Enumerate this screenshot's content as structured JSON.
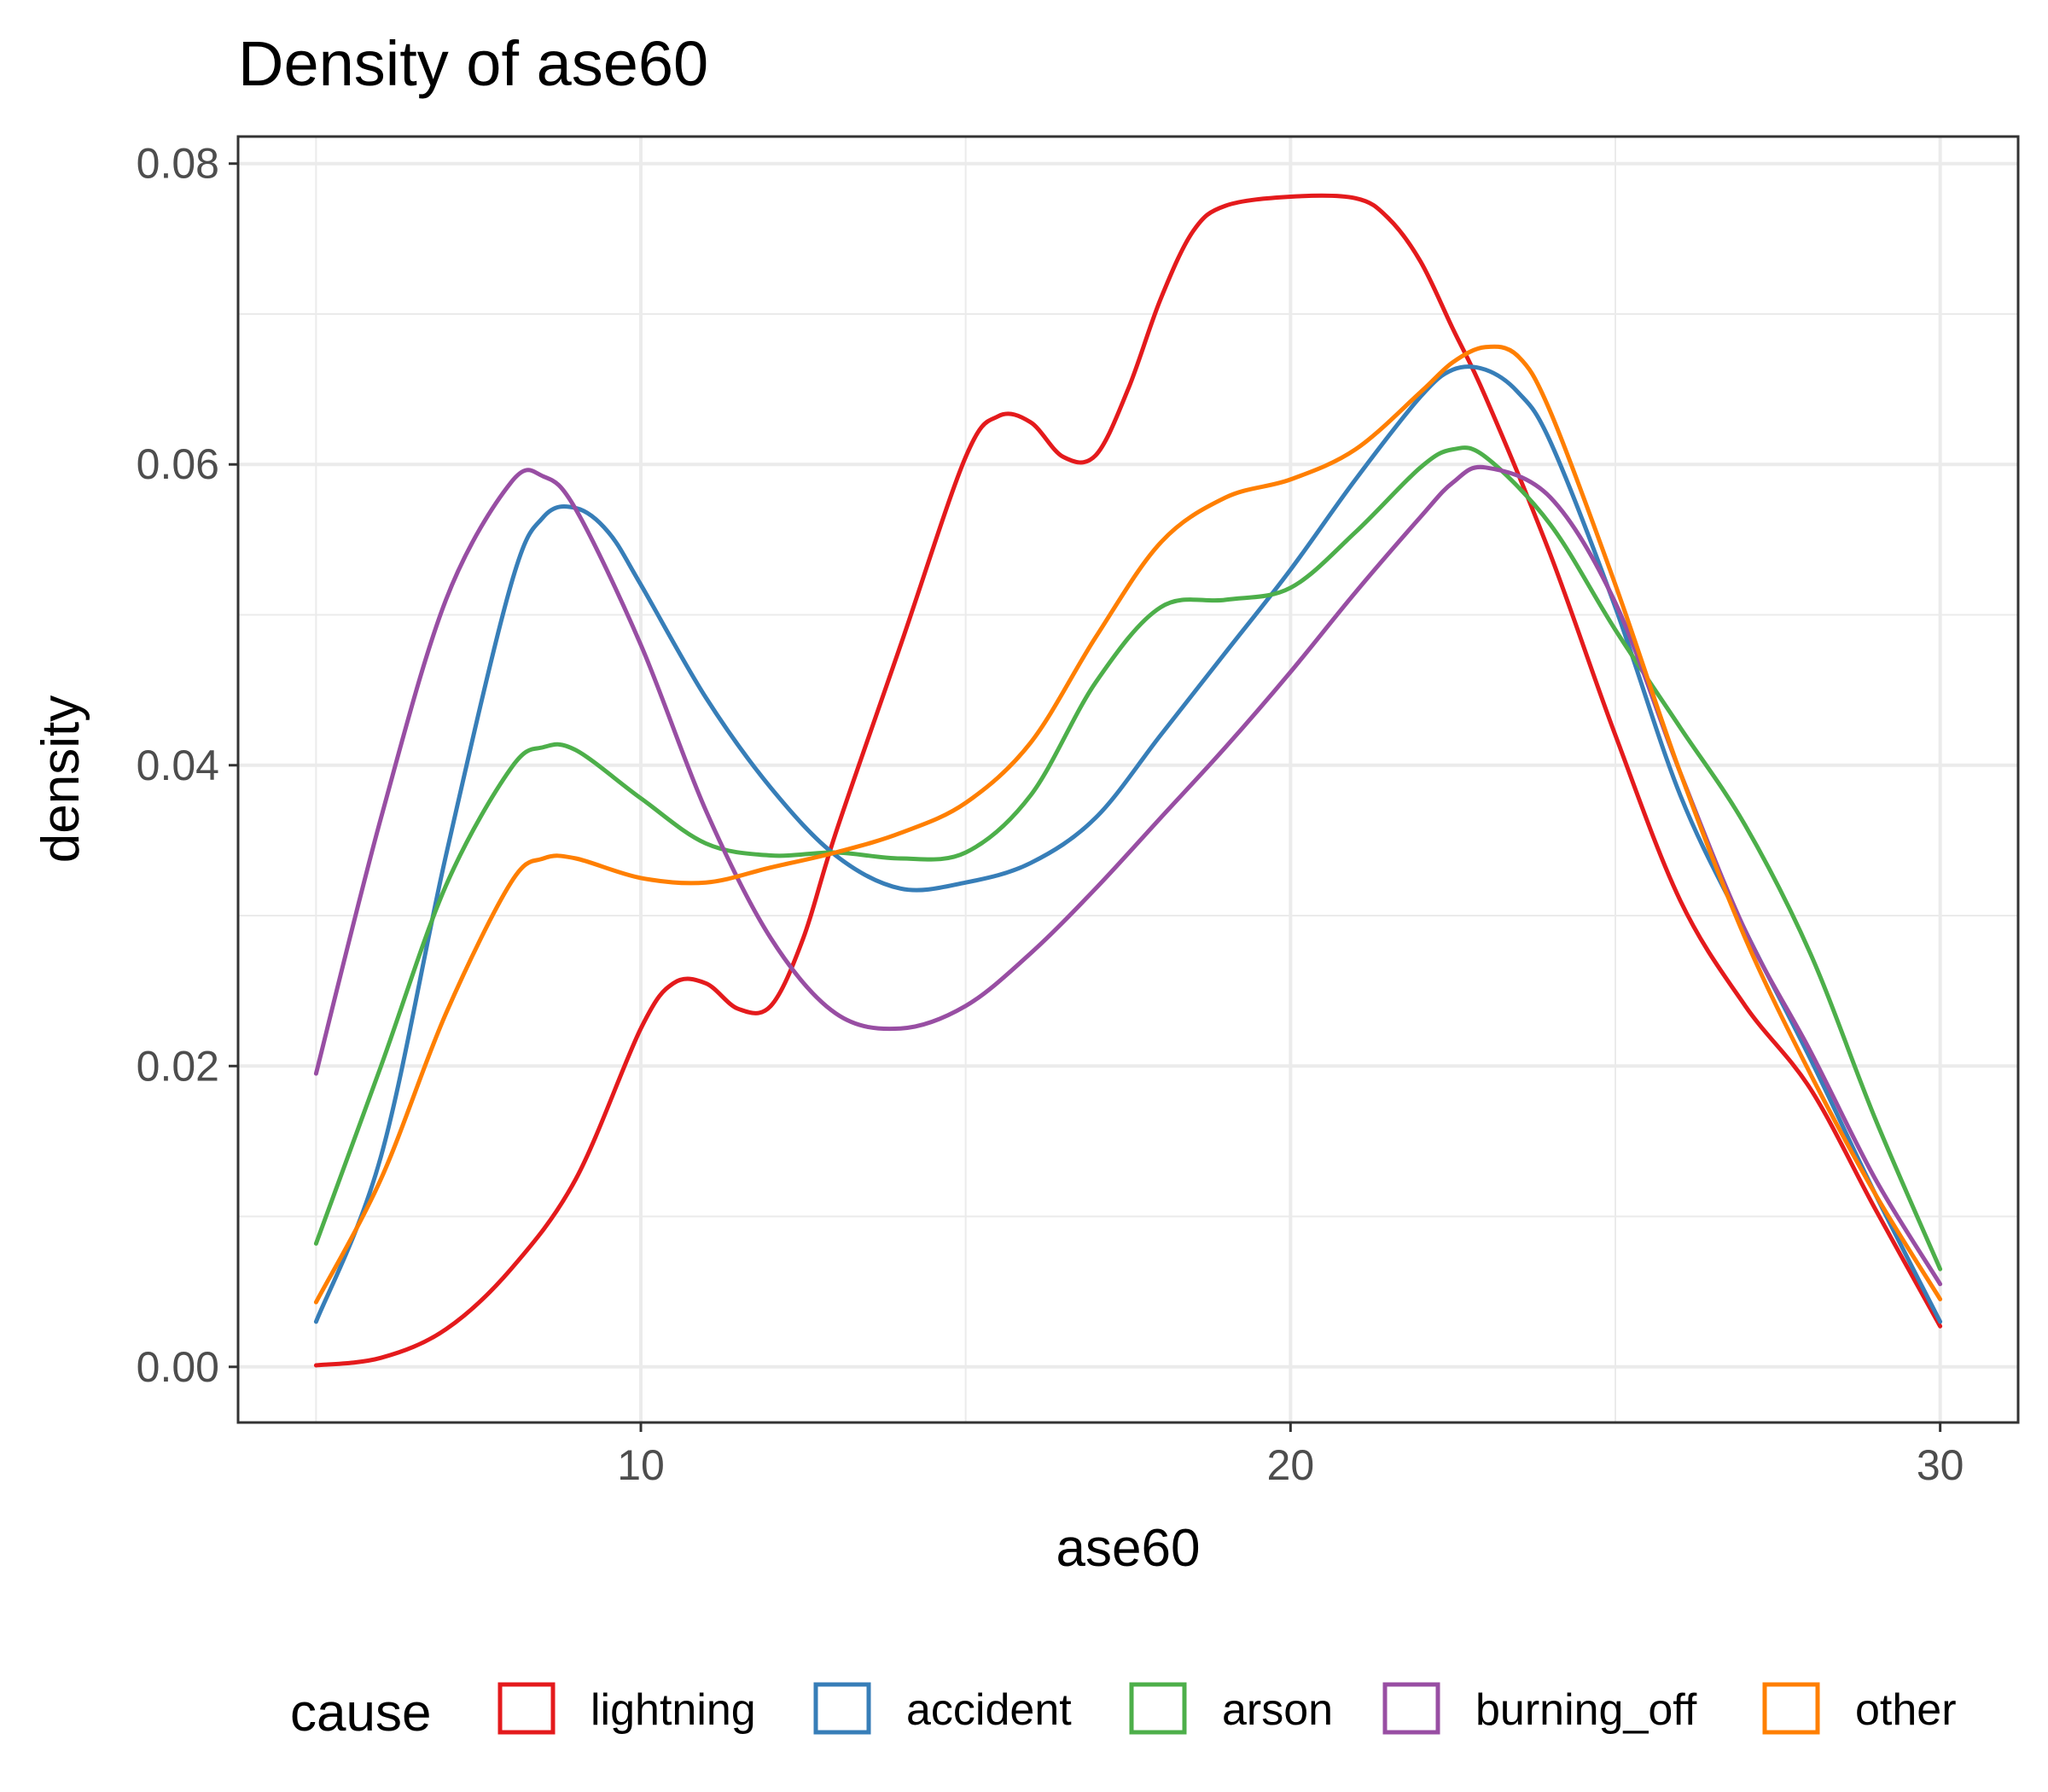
{
  "chart_data": {
    "type": "line",
    "title": "Density of ase60",
    "xlabel": "ase60",
    "ylabel": "density",
    "xlim": [
      3.8,
      31.2
    ],
    "ylim": [
      -0.0037,
      0.0818
    ],
    "x_ticks": [
      10,
      20,
      30
    ],
    "x_tick_labels": [
      "10",
      "20",
      "30"
    ],
    "y_ticks": [
      0,
      0.02,
      0.04,
      0.06,
      0.08
    ],
    "y_tick_labels": [
      "0.00",
      "0.02",
      "0.04",
      "0.06",
      "0.08"
    ],
    "grid": true,
    "legend": {
      "title": "cause",
      "position": "bottom"
    },
    "series": [
      {
        "name": "lightning",
        "color": "#e41a1c",
        "x": [
          5,
          6,
          7,
          8,
          9,
          10,
          10.5,
          11,
          11.5,
          12,
          12.5,
          13,
          14,
          15,
          15.5,
          16,
          16.5,
          17,
          17.5,
          18,
          18.5,
          19,
          20,
          21,
          21.5,
          22,
          22.5,
          23,
          24,
          25,
          26,
          27,
          28,
          29,
          30
        ],
        "y": [
          0.0001,
          0.0006,
          0.0025,
          0.0065,
          0.0125,
          0.0225,
          0.0255,
          0.0255,
          0.0238,
          0.024,
          0.0285,
          0.0355,
          0.048,
          0.0605,
          0.0632,
          0.0628,
          0.0605,
          0.0606,
          0.065,
          0.071,
          0.0755,
          0.0772,
          0.0778,
          0.0777,
          0.0764,
          0.0735,
          0.069,
          0.0645,
          0.054,
          0.042,
          0.031,
          0.024,
          0.0185,
          0.0105,
          0.0027
        ]
      },
      {
        "name": "accident",
        "color": "#377eb8",
        "x": [
          5,
          6,
          7,
          8,
          8.5,
          9,
          9.5,
          10,
          11,
          12,
          13,
          14,
          15,
          16,
          17,
          18,
          19,
          20,
          21,
          22,
          22.5,
          23,
          23.5,
          24,
          25,
          26,
          27,
          28,
          29,
          30
        ],
        "y": [
          0.003,
          0.014,
          0.034,
          0.052,
          0.0565,
          0.0571,
          0.0555,
          0.052,
          0.0445,
          0.0385,
          0.034,
          0.0318,
          0.0322,
          0.0335,
          0.0365,
          0.042,
          0.0475,
          0.053,
          0.059,
          0.0645,
          0.0663,
          0.0663,
          0.0648,
          0.0615,
          0.0505,
          0.038,
          0.029,
          0.0205,
          0.0115,
          0.003
        ]
      },
      {
        "name": "arson",
        "color": "#4daf4a",
        "x": [
          5,
          6,
          7,
          8,
          8.5,
          9,
          10,
          11,
          12,
          13,
          14,
          15,
          16,
          17,
          18,
          19,
          20,
          21,
          22,
          22.5,
          23,
          24,
          25,
          26,
          27,
          28,
          29,
          30
        ],
        "y": [
          0.0082,
          0.02,
          0.032,
          0.0398,
          0.0412,
          0.041,
          0.0378,
          0.0348,
          0.034,
          0.0342,
          0.0338,
          0.0342,
          0.038,
          0.0455,
          0.0505,
          0.051,
          0.0518,
          0.0555,
          0.0598,
          0.061,
          0.0605,
          0.056,
          0.049,
          0.0425,
          0.036,
          0.0275,
          0.0165,
          0.0065
        ]
      },
      {
        "name": "burning_off",
        "color": "#984ea3",
        "x": [
          5,
          6,
          7,
          8,
          8.5,
          9,
          10,
          11,
          12,
          13,
          14,
          15,
          16,
          17,
          18,
          19,
          20,
          21,
          22,
          22.5,
          23,
          24,
          25,
          26,
          27,
          28,
          29,
          30
        ],
        "y": [
          0.0195,
          0.0365,
          0.051,
          0.0588,
          0.0592,
          0.057,
          0.048,
          0.037,
          0.0285,
          0.0235,
          0.0225,
          0.024,
          0.0275,
          0.0318,
          0.0365,
          0.0412,
          0.0462,
          0.0515,
          0.0565,
          0.0588,
          0.0598,
          0.0578,
          0.0508,
          0.0395,
          0.029,
          0.021,
          0.0125,
          0.0055
        ]
      },
      {
        "name": "other",
        "color": "#ff7f00",
        "x": [
          5,
          6,
          7,
          8,
          8.5,
          9,
          10,
          11,
          12,
          13,
          14,
          15,
          16,
          17,
          18,
          19,
          20,
          21,
          22,
          22.5,
          23,
          23.5,
          24,
          25,
          26,
          27,
          28,
          29,
          30
        ],
        "y": [
          0.0043,
          0.0125,
          0.0235,
          0.0322,
          0.0338,
          0.0338,
          0.0325,
          0.0322,
          0.0332,
          0.0342,
          0.0355,
          0.0375,
          0.0415,
          0.0485,
          0.0548,
          0.0578,
          0.059,
          0.061,
          0.0648,
          0.0668,
          0.0678,
          0.0672,
          0.0635,
          0.052,
          0.0395,
          0.0285,
          0.0195,
          0.0115,
          0.0045
        ]
      }
    ]
  }
}
